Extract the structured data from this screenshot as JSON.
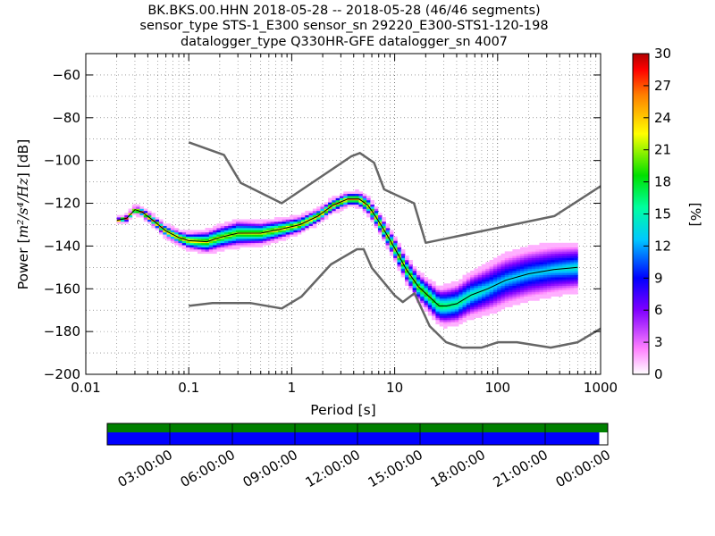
{
  "title": {
    "line1": "BK.BKS.00.HHN   2018-05-28 -- 2018-05-28  (46/46 segments)",
    "line2": "sensor_type STS-1_E300 sensor_sn 29220_E300-STS1-120-198",
    "line3": "datalogger_type Q330HR-GFE datalogger_sn 4007"
  },
  "colorbar": {
    "label": "[%]",
    "ticks": [
      "30",
      "27",
      "24",
      "21",
      "18",
      "15",
      "12",
      "9",
      "6",
      "3",
      "0"
    ],
    "range": [
      0,
      30
    ],
    "colors": [
      "#ffffff",
      "#8000ff",
      "#0000ff",
      "#00c8ff",
      "#00ff80",
      "#ffff00",
      "#ff8000",
      "#ff0000",
      "#a00000"
    ]
  },
  "timeline": {
    "labels": [
      "03:00:00",
      "06:00:00",
      "09:00:00",
      "12:00:00",
      "15:00:00",
      "18:00:00",
      "21:00:00",
      "00:00:00"
    ],
    "top_bar_color": "#008000",
    "bottom_bar_color": "#0000ff",
    "coverage_top": 1.0,
    "coverage_bottom": 0.983
  },
  "chart_data": {
    "type": "heatmap",
    "title": "BK.BKS.00.HHN   2018-05-28 -- 2018-05-28  (46/46 segments)",
    "xlabel": "Period [s]",
    "ylabel_main": "Power [",
    "ylabel_math": "m²/s⁴/Hz",
    "ylabel_tail": "] [dB]",
    "xscale": "log",
    "xlim": [
      0.01,
      1000
    ],
    "ylim": [
      -200,
      -50
    ],
    "x_ticks": [
      0.01,
      0.1,
      1,
      10,
      100,
      1000
    ],
    "x_tick_labels": [
      "0.01",
      "0.1",
      "1",
      "10",
      "100",
      "1000"
    ],
    "y_ticks": [
      -60,
      -80,
      -100,
      -120,
      -140,
      -160,
      -180,
      -200
    ],
    "y_tick_labels": [
      "−60",
      "−80",
      "−100",
      "−120",
      "−140",
      "−160",
      "−180",
      "−200"
    ],
    "grid": "dotted",
    "noise_model_high": {
      "x": [
        0.1,
        0.22,
        0.32,
        0.8,
        3.8,
        4.6,
        6.3,
        7.9,
        15.4,
        20,
        354.8,
        1000
      ],
      "y": [
        -91.5,
        -97.4,
        -110.5,
        -120,
        -98,
        -96.5,
        -101,
        -113.5,
        -120,
        -138.5,
        -126,
        -112
      ]
    },
    "noise_model_low": {
      "x": [
        0.1,
        0.17,
        0.4,
        0.8,
        1.24,
        2.4,
        4.3,
        5,
        6,
        10,
        12,
        15.6,
        21.9,
        31.6,
        45,
        70,
        101,
        154,
        328,
        600,
        1000
      ],
      "y": [
        -168,
        -166.7,
        -166.7,
        -169.2,
        -163.7,
        -148.6,
        -141.5,
        -141.5,
        -150.2,
        -163.1,
        -166.2,
        -162.1,
        -177.5,
        -185,
        -187.5,
        -187.5,
        -185,
        -185,
        -187.5,
        -185,
        -178.6
      ]
    },
    "mode_line": {
      "x": [
        0.02,
        0.025,
        0.03,
        0.035,
        0.045,
        0.06,
        0.08,
        0.1,
        0.15,
        0.2,
        0.3,
        0.5,
        0.8,
        1.2,
        1.8,
        2.5,
        3.5,
        4.5,
        5.5,
        6.5,
        8,
        10,
        13,
        17,
        22,
        27,
        32,
        40,
        55,
        80,
        120,
        200,
        350,
        600
      ],
      "y": [
        -128,
        -127,
        -123,
        -124,
        -128,
        -133,
        -136,
        -137.5,
        -138,
        -136,
        -134,
        -134,
        -132,
        -130,
        -126,
        -121,
        -118,
        -118,
        -121,
        -126,
        -133,
        -141,
        -151,
        -159,
        -164,
        -168,
        -168,
        -167,
        -163,
        -160,
        -156,
        -153,
        -151,
        -150
      ]
    },
    "spread": {
      "x": [
        0.02,
        0.04,
        0.08,
        0.15,
        0.3,
        0.6,
        1,
        2,
        4,
        6,
        10,
        20,
        30,
        50,
        100,
        300,
        600
      ],
      "half_width_db": [
        1,
        2,
        3,
        5,
        6,
        5,
        4,
        3,
        3,
        4,
        5,
        7,
        9,
        10,
        12,
        12,
        11
      ]
    }
  }
}
